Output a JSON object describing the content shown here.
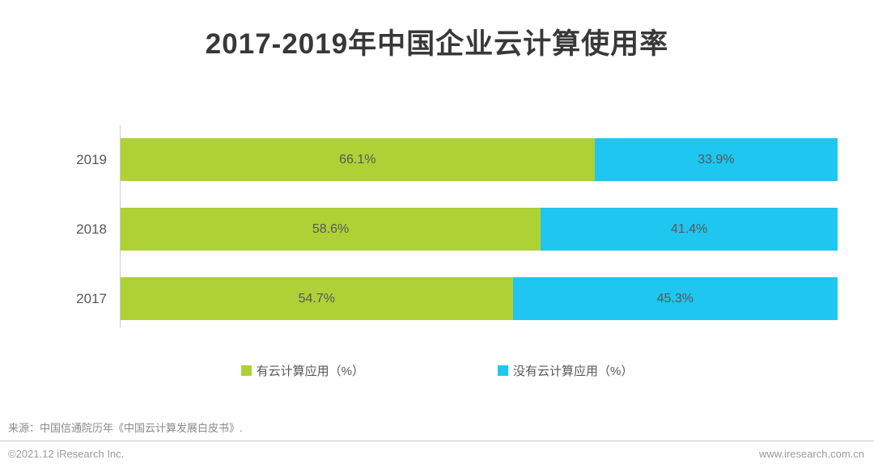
{
  "title": "2017-2019年中国企业云计算使用率",
  "chart_data": {
    "type": "bar",
    "orientation": "horizontal",
    "stacked": true,
    "title": "2017-2019年中国企业云计算使用率",
    "categories": [
      "2019",
      "2018",
      "2017"
    ],
    "series": [
      {
        "name": "有云计算应用（%）",
        "color": "#aed136",
        "values": [
          66.1,
          58.6,
          54.7
        ]
      },
      {
        "name": "没有云计算应用（%）",
        "color": "#1ec6f0",
        "values": [
          33.9,
          41.4,
          45.3
        ]
      }
    ],
    "xlim": [
      0,
      100
    ],
    "value_suffix": "%",
    "grid": false,
    "legend_position": "bottom",
    "axis_color": "#cccccc"
  },
  "source_note": "来源：中国信通院历年《中国云计算发展白皮书》.",
  "footer": {
    "copyright": "©2021.12 iResearch Inc.",
    "website": "www.iresearch.com.cn"
  },
  "colors": {
    "title_text": "#383838",
    "label_text": "#595757",
    "value_text": "#595757",
    "source_text": "#898989",
    "footer_text": "#9b9b9b",
    "divider": "#c9c9c9"
  }
}
